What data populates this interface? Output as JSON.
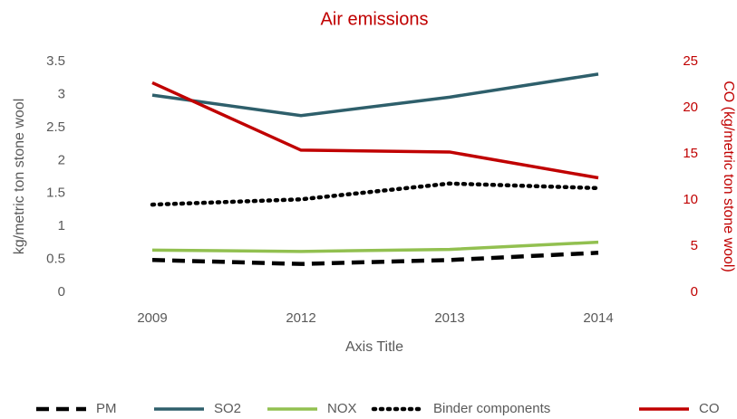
{
  "chart_data": {
    "type": "line",
    "title": "Air emissions",
    "categories": [
      "2009",
      "2012",
      "2013",
      "2014"
    ],
    "series": [
      {
        "name": "PM",
        "color": "#000000",
        "dash": "dashed",
        "values": [
          0.49,
          0.43,
          0.49,
          0.6
        ]
      },
      {
        "name": "SO2",
        "color": "#2e5f6b",
        "dash": "solid",
        "values": [
          2.99,
          2.68,
          2.96,
          3.31
        ]
      },
      {
        "name": "NOX",
        "color": "#92c050",
        "dash": "solid",
        "values": [
          0.64,
          0.62,
          0.65,
          0.76
        ]
      },
      {
        "name": "Binder components",
        "color": "#000000",
        "dash": "dotted",
        "values": [
          1.33,
          1.41,
          1.65,
          1.58
        ]
      },
      {
        "name": "CO",
        "color": "#c00000",
        "dash": "solid",
        "axis": "y2",
        "values": [
          22.7,
          15.4,
          15.2,
          12.4
        ]
      }
    ],
    "xlabel": "Axis Title",
    "ylabel": "kg/metric ton stone wool",
    "y2label": "CO (kg/metric ton stone wool)",
    "ylim": [
      0,
      3.5
    ],
    "yticks": [
      0,
      0.5,
      1,
      1.5,
      2,
      2.5,
      3,
      3.5
    ],
    "y2lim": [
      0,
      25
    ],
    "y2ticks": [
      0,
      5,
      10,
      15,
      20,
      25
    ],
    "grid": false,
    "legend": "bottom"
  }
}
